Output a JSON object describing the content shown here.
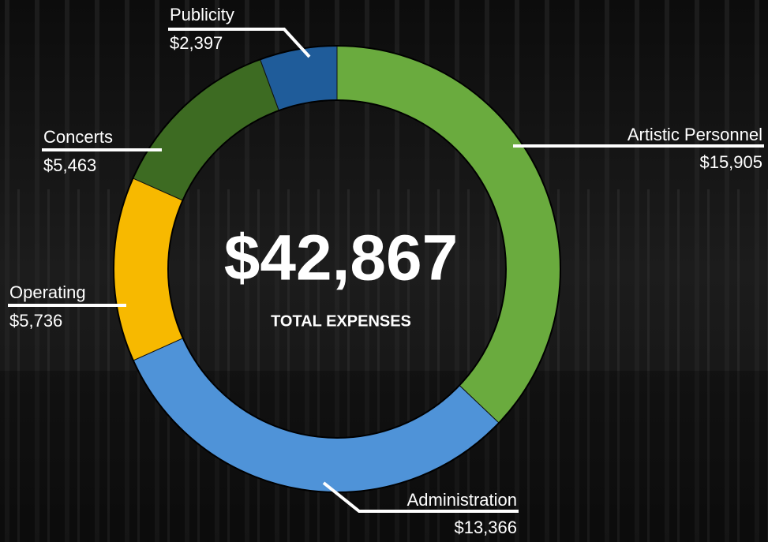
{
  "chart_data": {
    "type": "pie",
    "donut": true,
    "categories": [
      "Artistic Personnel",
      "Administration",
      "Operating",
      "Concerts",
      "Publicity"
    ],
    "values": [
      15905,
      13366,
      5736,
      5463,
      2397
    ],
    "value_labels": [
      "$15,905",
      "$13,366",
      "$5,736",
      "$5,463",
      "$2,397"
    ],
    "colors": [
      "#6aab3e",
      "#4f93d8",
      "#f7b900",
      "#3d6b22",
      "#1f5c9a"
    ],
    "center_title": "$42,867",
    "center_subtitle": "TOTAL EXPENSES"
  }
}
